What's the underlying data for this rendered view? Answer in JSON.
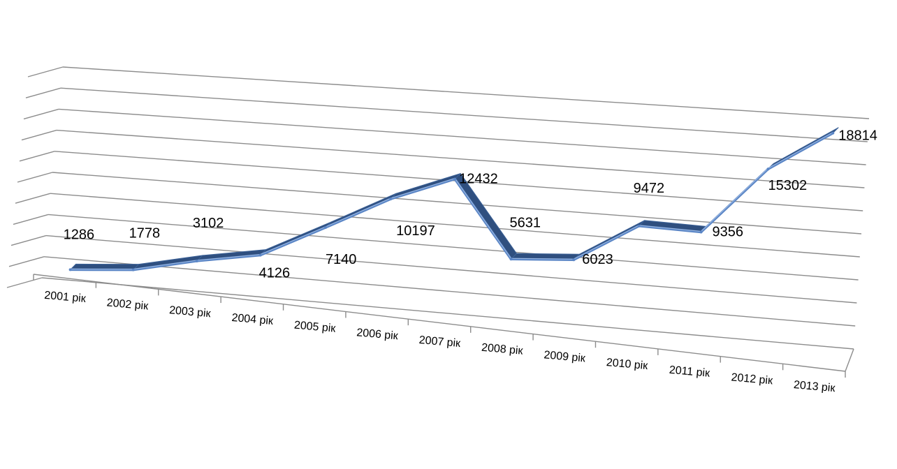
{
  "chart_data": {
    "type": "line",
    "categories": [
      "2001 рік",
      "2002 рік",
      "2003 рік",
      "2004 рік",
      "2005 рік",
      "2006 рік",
      "2007 рік",
      "2008 рік",
      "2009 рік",
      "2010 рік",
      "2011 рік",
      "2012 рік",
      "2013 рік"
    ],
    "series": [
      {
        "values": [
          1286,
          1778,
          3102,
          4126,
          7140,
          10197,
          12432,
          5631,
          6023,
          9472,
          9356,
          15302,
          18814
        ]
      }
    ],
    "ylim": [
      0,
      20000
    ],
    "grid": true,
    "three_d": true,
    "colors": {
      "line_front": "#5b86c6",
      "line_side": "#2f4f7f",
      "line_top": "#3d6399",
      "grid": "#8c8c8c"
    }
  }
}
